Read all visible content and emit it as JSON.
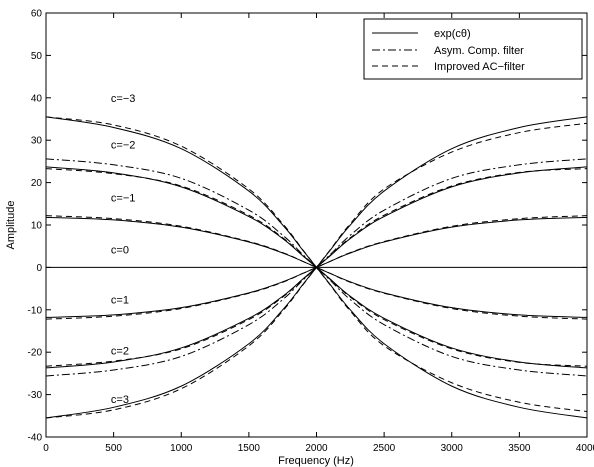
{
  "chart_data": {
    "type": "line",
    "title": "",
    "xlabel": "Frequency (Hz)",
    "ylabel": "Amplitude",
    "xlim": [
      0,
      4000
    ],
    "ylim": [
      -40,
      60
    ],
    "xticks": [
      0,
      500,
      1000,
      1500,
      2000,
      2500,
      3000,
      3500,
      4000
    ],
    "yticks": [
      -40,
      -30,
      -20,
      -10,
      0,
      10,
      20,
      30,
      40,
      50,
      60
    ],
    "grid": false,
    "legend_position": "top-right",
    "legend": [
      {
        "label": "exp(cθ)",
        "style": "solid"
      },
      {
        "label": "Asym. Comp. filter",
        "style": "dashdot"
      },
      {
        "label": "Improved AC−filter",
        "style": "dashed"
      }
    ],
    "annotations": [
      {
        "text": "c=−3",
        "x": 480,
        "y": 39
      },
      {
        "text": "c=−2",
        "x": 480,
        "y": 28
      },
      {
        "text": "c=−1",
        "x": 480,
        "y": 15.5
      },
      {
        "text": "c=0",
        "x": 480,
        "y": 3.3
      },
      {
        "text": "c=1",
        "x": 480,
        "y": -8.5
      },
      {
        "text": "c=2",
        "x": 480,
        "y": -20.5
      },
      {
        "text": "c=3",
        "x": 480,
        "y": -32
      }
    ],
    "series": [
      {
        "c": -3,
        "style": "solid",
        "x": [
          0,
          500,
          1000,
          1500,
          1750,
          1900,
          2000,
          2100,
          2250,
          2500,
          3000,
          3500,
          4000
        ],
        "y": [
          35.5,
          33,
          28,
          18,
          10,
          4,
          0,
          -4,
          -10,
          -18,
          -28,
          -33,
          -35.5
        ]
      },
      {
        "c": -3,
        "style": "dashed",
        "x": [
          0,
          500,
          1000,
          1500,
          1750,
          1900,
          2000,
          2100,
          2250,
          2500,
          3000,
          3500,
          4000
        ],
        "y": [
          35.5,
          33.6,
          28.6,
          18.5,
          10.3,
          4.1,
          0,
          -4.1,
          -10.3,
          -18.5,
          -27.2,
          -31.8,
          -34
        ]
      },
      {
        "c": 3,
        "style": "solid",
        "x": [
          0,
          500,
          1000,
          1500,
          1750,
          1900,
          2000,
          2100,
          2250,
          2500,
          3000,
          3500,
          4000
        ],
        "y": [
          -35.5,
          -33,
          -28,
          -18,
          -10,
          -4,
          0,
          4,
          10,
          18,
          28,
          33,
          35.5
        ]
      },
      {
        "c": 3,
        "style": "dashed",
        "x": [
          0,
          500,
          1000,
          1500,
          1750,
          1900,
          2000,
          2100,
          2250,
          2500,
          3000,
          3500,
          4000
        ],
        "y": [
          -35.5,
          -33.6,
          -28.6,
          -18.5,
          -10.3,
          -4.1,
          0,
          4.1,
          10.3,
          18.5,
          27.2,
          31.8,
          34
        ]
      },
      {
        "c": -2,
        "style": "solid",
        "x": [
          0,
          500,
          1000,
          1500,
          1750,
          1900,
          2000,
          2100,
          2250,
          2500,
          3000,
          3500,
          4000
        ],
        "y": [
          23.7,
          22.3,
          19,
          12,
          6.8,
          2.7,
          0,
          -2.7,
          -6.8,
          -12,
          -19,
          -22.3,
          -23.7
        ]
      },
      {
        "c": -2,
        "style": "dashed",
        "x": [
          0,
          500,
          1000,
          1500,
          1750,
          1900,
          2000,
          2100,
          2250,
          2500,
          3000,
          3500,
          4000
        ],
        "y": [
          23.3,
          22.1,
          19.2,
          12.3,
          7,
          2.8,
          0,
          -2.8,
          -7,
          -12.3,
          -19.2,
          -22.4,
          -23.3
        ]
      },
      {
        "c": -2,
        "style": "dashdot",
        "x": [
          0,
          500,
          1000,
          1500,
          1750,
          1900,
          2000,
          2100,
          2250,
          2500,
          3000,
          3500,
          4000
        ],
        "y": [
          25.6,
          24.2,
          21,
          13.5,
          7.6,
          3,
          0,
          -3,
          -7.6,
          -13.5,
          -21,
          -24.2,
          -25.6
        ]
      },
      {
        "c": 2,
        "style": "solid",
        "x": [
          0,
          500,
          1000,
          1500,
          1750,
          1900,
          2000,
          2100,
          2250,
          2500,
          3000,
          3500,
          4000
        ],
        "y": [
          -23.7,
          -22.3,
          -19,
          -12,
          -6.8,
          -2.7,
          0,
          2.7,
          6.8,
          12,
          19,
          22.3,
          23.7
        ]
      },
      {
        "c": 2,
        "style": "dashed",
        "x": [
          0,
          500,
          1000,
          1500,
          1750,
          1900,
          2000,
          2100,
          2250,
          2500,
          3000,
          3500,
          4000
        ],
        "y": [
          -23.3,
          -22.1,
          -19.2,
          -12.3,
          -7,
          -2.8,
          0,
          2.8,
          7,
          12.3,
          19.2,
          22.4,
          23.3
        ]
      },
      {
        "c": 2,
        "style": "dashdot",
        "x": [
          0,
          500,
          1000,
          1500,
          1750,
          1900,
          2000,
          2100,
          2250,
          2500,
          3000,
          3500,
          4000
        ],
        "y": [
          -25.6,
          -24.2,
          -21,
          -13.5,
          -7.6,
          -3,
          0,
          3,
          7.6,
          13.5,
          21,
          24.2,
          25.6
        ]
      },
      {
        "c": -1,
        "style": "solid",
        "x": [
          0,
          500,
          1000,
          1500,
          1750,
          1900,
          2000,
          2100,
          2250,
          2500,
          3000,
          3500,
          4000
        ],
        "y": [
          11.8,
          11.2,
          9.5,
          6,
          3.4,
          1.4,
          0,
          -1.4,
          -3.4,
          -6,
          -9.5,
          -11.2,
          -11.8
        ]
      },
      {
        "c": -1,
        "style": "dashed",
        "x": [
          0,
          500,
          1000,
          1500,
          1750,
          1900,
          2000,
          2100,
          2250,
          2500,
          3000,
          3500,
          4000
        ],
        "y": [
          12.2,
          11.5,
          9.7,
          6.1,
          3.5,
          1.4,
          0,
          -1.4,
          -3.5,
          -6.1,
          -9.7,
          -11.5,
          -12.2
        ]
      },
      {
        "c": 1,
        "style": "solid",
        "x": [
          0,
          500,
          1000,
          1500,
          1750,
          1900,
          2000,
          2100,
          2250,
          2500,
          3000,
          3500,
          4000
        ],
        "y": [
          -11.8,
          -11.2,
          -9.5,
          -6,
          -3.4,
          -1.4,
          0,
          1.4,
          3.4,
          6,
          9.5,
          11.2,
          11.8
        ]
      },
      {
        "c": 1,
        "style": "dashed",
        "x": [
          0,
          500,
          1000,
          1500,
          1750,
          1900,
          2000,
          2100,
          2250,
          2500,
          3000,
          3500,
          4000
        ],
        "y": [
          -12.2,
          -11.5,
          -9.7,
          -6.1,
          -3.5,
          -1.4,
          0,
          1.4,
          3.5,
          6.1,
          9.7,
          11.5,
          12.2
        ]
      },
      {
        "c": 0,
        "style": "solid",
        "x": [
          0,
          4000
        ],
        "y": [
          0,
          0
        ]
      }
    ]
  }
}
